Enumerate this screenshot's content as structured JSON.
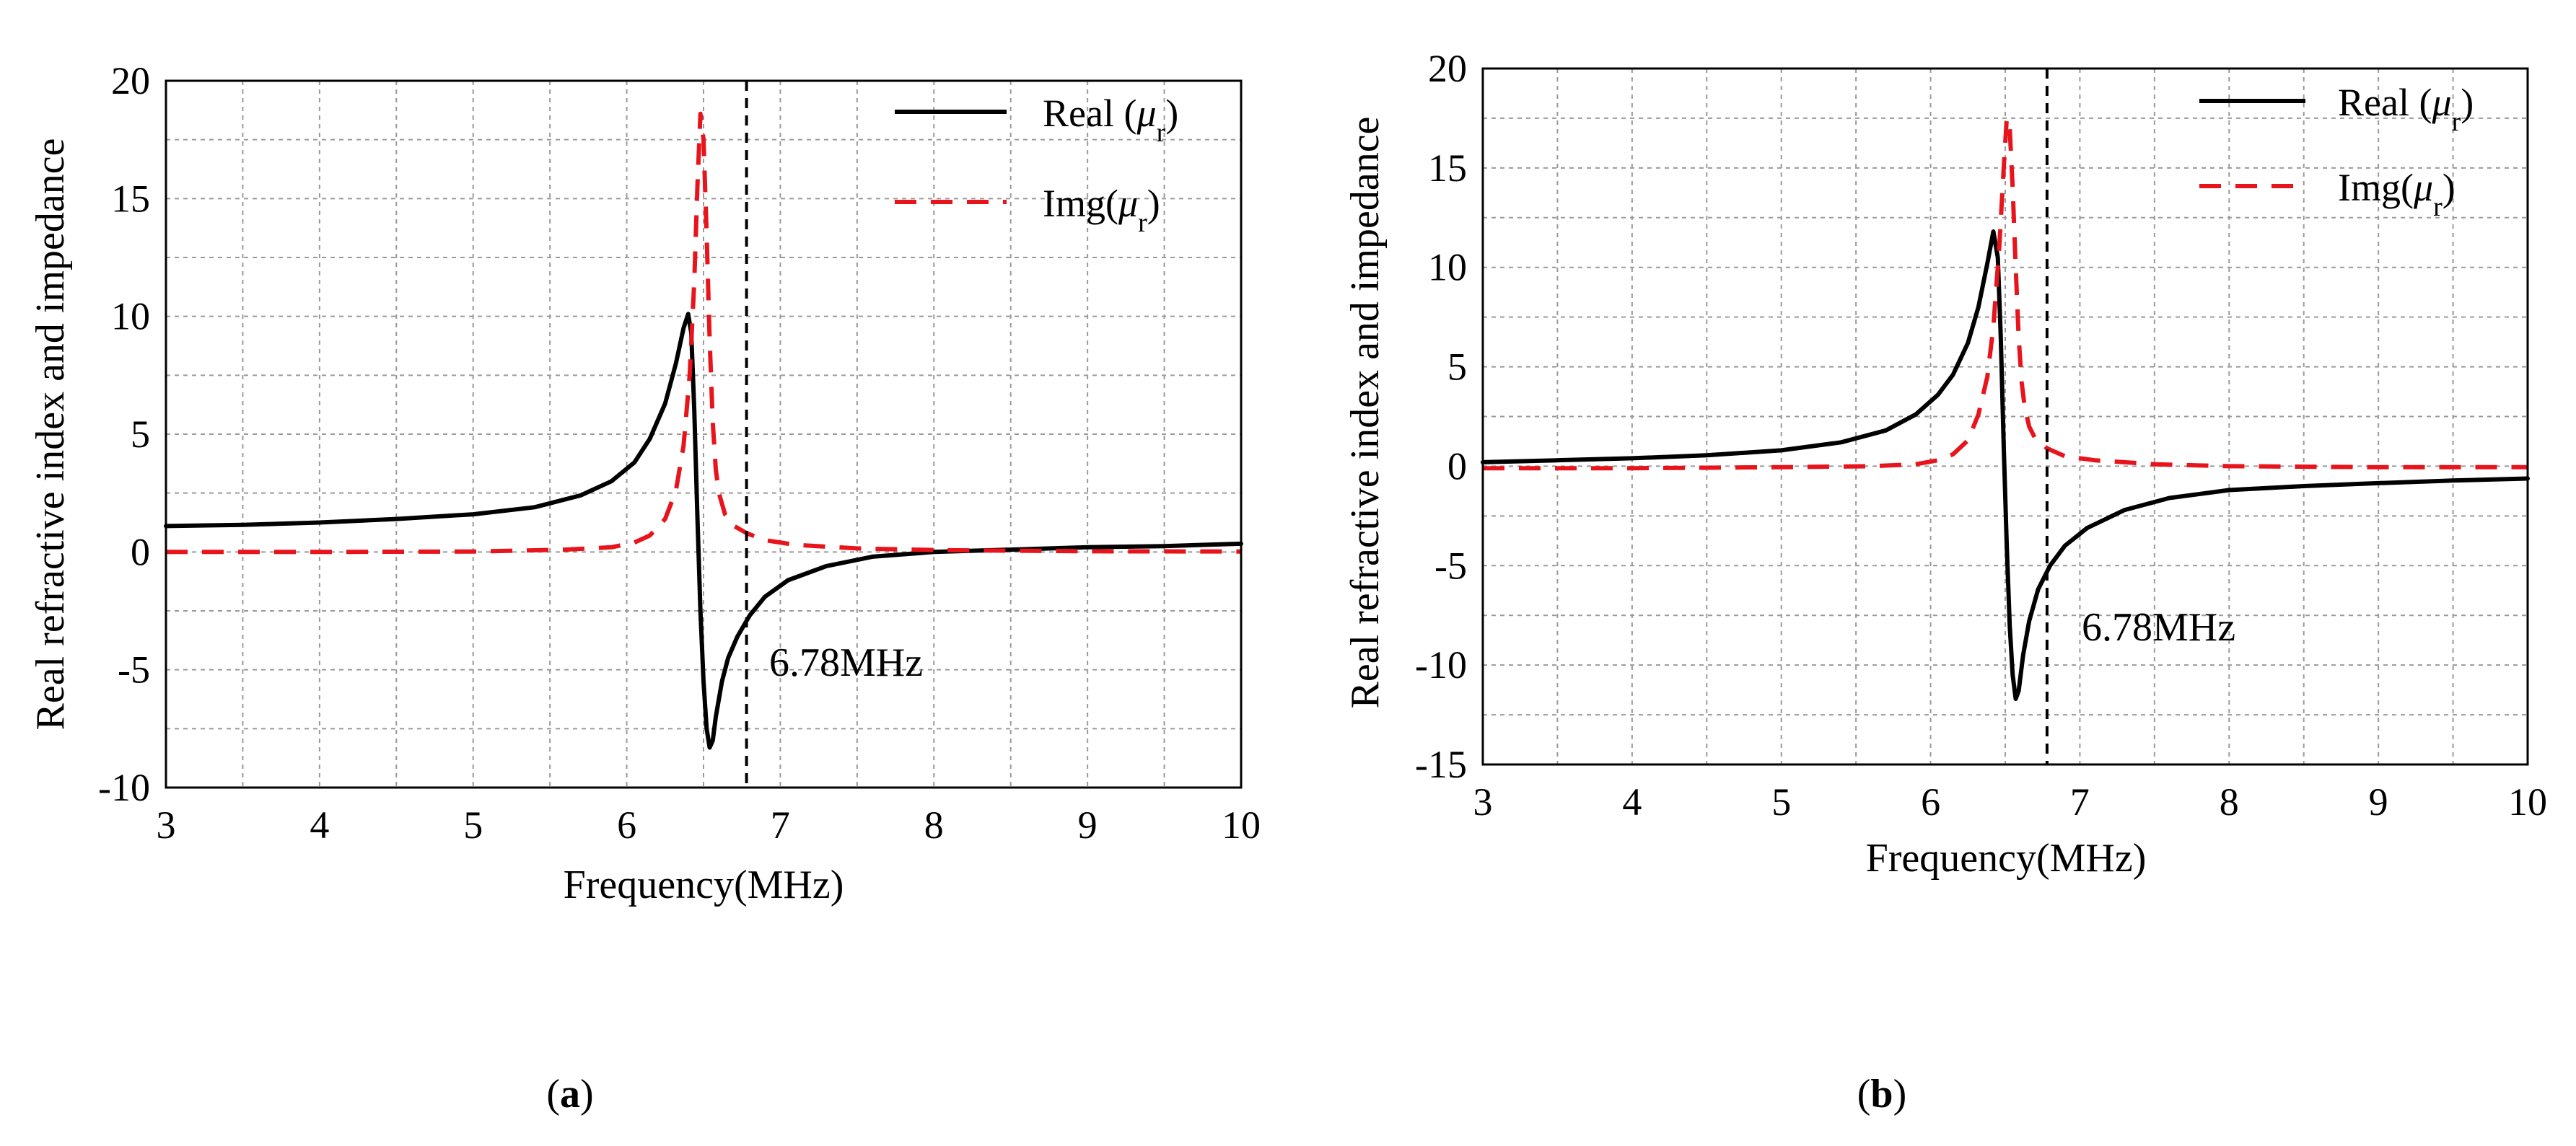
{
  "chart_data": [
    {
      "id": "a",
      "type": "line",
      "caption": {
        "open": "(",
        "letter": "a",
        "close": ")"
      },
      "xlabel": "Frequency(MHz)",
      "ylabel": "Real refractive index and impedance",
      "xlim": [
        3,
        10
      ],
      "ylim": [
        -10,
        20
      ],
      "xticks": [
        3,
        4,
        5,
        6,
        7,
        8,
        9,
        10
      ],
      "yticks": [
        -10,
        -5,
        0,
        5,
        10,
        15,
        20
      ],
      "grid": true,
      "legend_position": "top-right",
      "annotation": {
        "text": "6.78MHz",
        "x": 6.78
      },
      "series": [
        {
          "name": "Real (μr)",
          "legend": {
            "prefix": "Real (",
            "mu": "μ",
            "sub": "r",
            "suffix": ")"
          },
          "color": "#000000",
          "style": "solid",
          "x": [
            3.0,
            3.5,
            4.0,
            4.5,
            5.0,
            5.4,
            5.7,
            5.9,
            6.05,
            6.15,
            6.25,
            6.32,
            6.37,
            6.4,
            6.42,
            6.44,
            6.46,
            6.48,
            6.5,
            6.52,
            6.54,
            6.56,
            6.58,
            6.62,
            6.66,
            6.72,
            6.8,
            6.9,
            7.05,
            7.3,
            7.6,
            8.0,
            8.5,
            9.0,
            9.5,
            10.0
          ],
          "y": [
            1.1,
            1.15,
            1.25,
            1.4,
            1.6,
            1.9,
            2.4,
            3.0,
            3.8,
            4.8,
            6.3,
            8.0,
            9.5,
            10.1,
            9.3,
            6.0,
            1.5,
            -2.5,
            -5.5,
            -7.5,
            -8.3,
            -8.0,
            -7.0,
            -5.5,
            -4.5,
            -3.6,
            -2.7,
            -1.9,
            -1.2,
            -0.6,
            -0.2,
            0.0,
            0.1,
            0.2,
            0.25,
            0.35
          ]
        },
        {
          "name": "Img(μr)",
          "legend": {
            "prefix": "Img(",
            "mu": "μ",
            "sub": "r",
            "suffix": ")"
          },
          "color": "#e8141c",
          "style": "dashed",
          "x": [
            3.0,
            4.0,
            5.0,
            5.6,
            5.9,
            6.05,
            6.15,
            6.25,
            6.32,
            6.37,
            6.41,
            6.44,
            6.46,
            6.48,
            6.5,
            6.52,
            6.54,
            6.56,
            6.58,
            6.6,
            6.64,
            6.7,
            6.78,
            6.9,
            7.1,
            7.5,
            8.0,
            9.0,
            10.0
          ],
          "y": [
            0.0,
            0.0,
            0.02,
            0.1,
            0.2,
            0.4,
            0.7,
            1.4,
            2.6,
            4.5,
            7.5,
            11.5,
            15.5,
            18.6,
            17.5,
            13.5,
            9.0,
            5.5,
            3.5,
            2.5,
            1.6,
            1.1,
            0.8,
            0.5,
            0.3,
            0.15,
            0.08,
            0.03,
            0.02
          ]
        }
      ]
    },
    {
      "id": "b",
      "type": "line",
      "caption": {
        "open": "(",
        "letter": "b",
        "close": ")"
      },
      "xlabel": "Frequency(MHz)",
      "ylabel": "Real refractive index and impedance",
      "xlim": [
        3,
        10
      ],
      "ylim": [
        -15,
        20
      ],
      "xticks": [
        3,
        4,
        5,
        6,
        7,
        8,
        9,
        10
      ],
      "yticks": [
        -15,
        -10,
        -5,
        0,
        5,
        10,
        15,
        20
      ],
      "grid": true,
      "legend_position": "top-right",
      "annotation": {
        "text": "6.78MHz",
        "x": 6.78
      },
      "series": [
        {
          "name": "Real (μr)",
          "legend": {
            "prefix": "Real (",
            "mu": "μ",
            "sub": "r",
            "suffix": ")"
          },
          "color": "#000000",
          "style": "solid",
          "x": [
            3.0,
            3.5,
            4.0,
            4.5,
            5.0,
            5.4,
            5.7,
            5.9,
            6.05,
            6.15,
            6.25,
            6.32,
            6.38,
            6.42,
            6.45,
            6.47,
            6.49,
            6.51,
            6.53,
            6.55,
            6.57,
            6.59,
            6.62,
            6.66,
            6.72,
            6.8,
            6.9,
            7.05,
            7.3,
            7.6,
            8.0,
            8.5,
            9.0,
            9.5,
            10.0
          ],
          "y": [
            0.2,
            0.3,
            0.4,
            0.55,
            0.8,
            1.2,
            1.8,
            2.6,
            3.6,
            4.6,
            6.2,
            8.0,
            10.2,
            11.8,
            10.5,
            6.5,
            1.0,
            -4.0,
            -8.0,
            -10.5,
            -11.7,
            -11.3,
            -9.5,
            -7.8,
            -6.2,
            -5.0,
            -4.0,
            -3.1,
            -2.2,
            -1.6,
            -1.2,
            -1.0,
            -0.85,
            -0.72,
            -0.62
          ]
        },
        {
          "name": "Img(μr)",
          "legend": {
            "prefix": "Img(",
            "mu": "μ",
            "sub": "r",
            "suffix": ")"
          },
          "color": "#e8141c",
          "style": "dashed",
          "x": [
            3.0,
            4.0,
            5.0,
            5.6,
            5.9,
            6.05,
            6.15,
            6.25,
            6.32,
            6.38,
            6.42,
            6.46,
            6.49,
            6.51,
            6.53,
            6.55,
            6.57,
            6.59,
            6.61,
            6.63,
            6.66,
            6.7,
            6.78,
            6.9,
            7.1,
            7.5,
            8.0,
            9.0,
            10.0
          ],
          "y": [
            -0.1,
            -0.1,
            -0.05,
            0.0,
            0.1,
            0.3,
            0.6,
            1.3,
            2.6,
            4.5,
            7.0,
            11.0,
            15.0,
            17.5,
            17.0,
            14.0,
            10.0,
            6.5,
            4.2,
            3.0,
            2.0,
            1.4,
            0.9,
            0.5,
            0.3,
            0.1,
            0.0,
            -0.05,
            -0.05
          ]
        }
      ]
    }
  ]
}
